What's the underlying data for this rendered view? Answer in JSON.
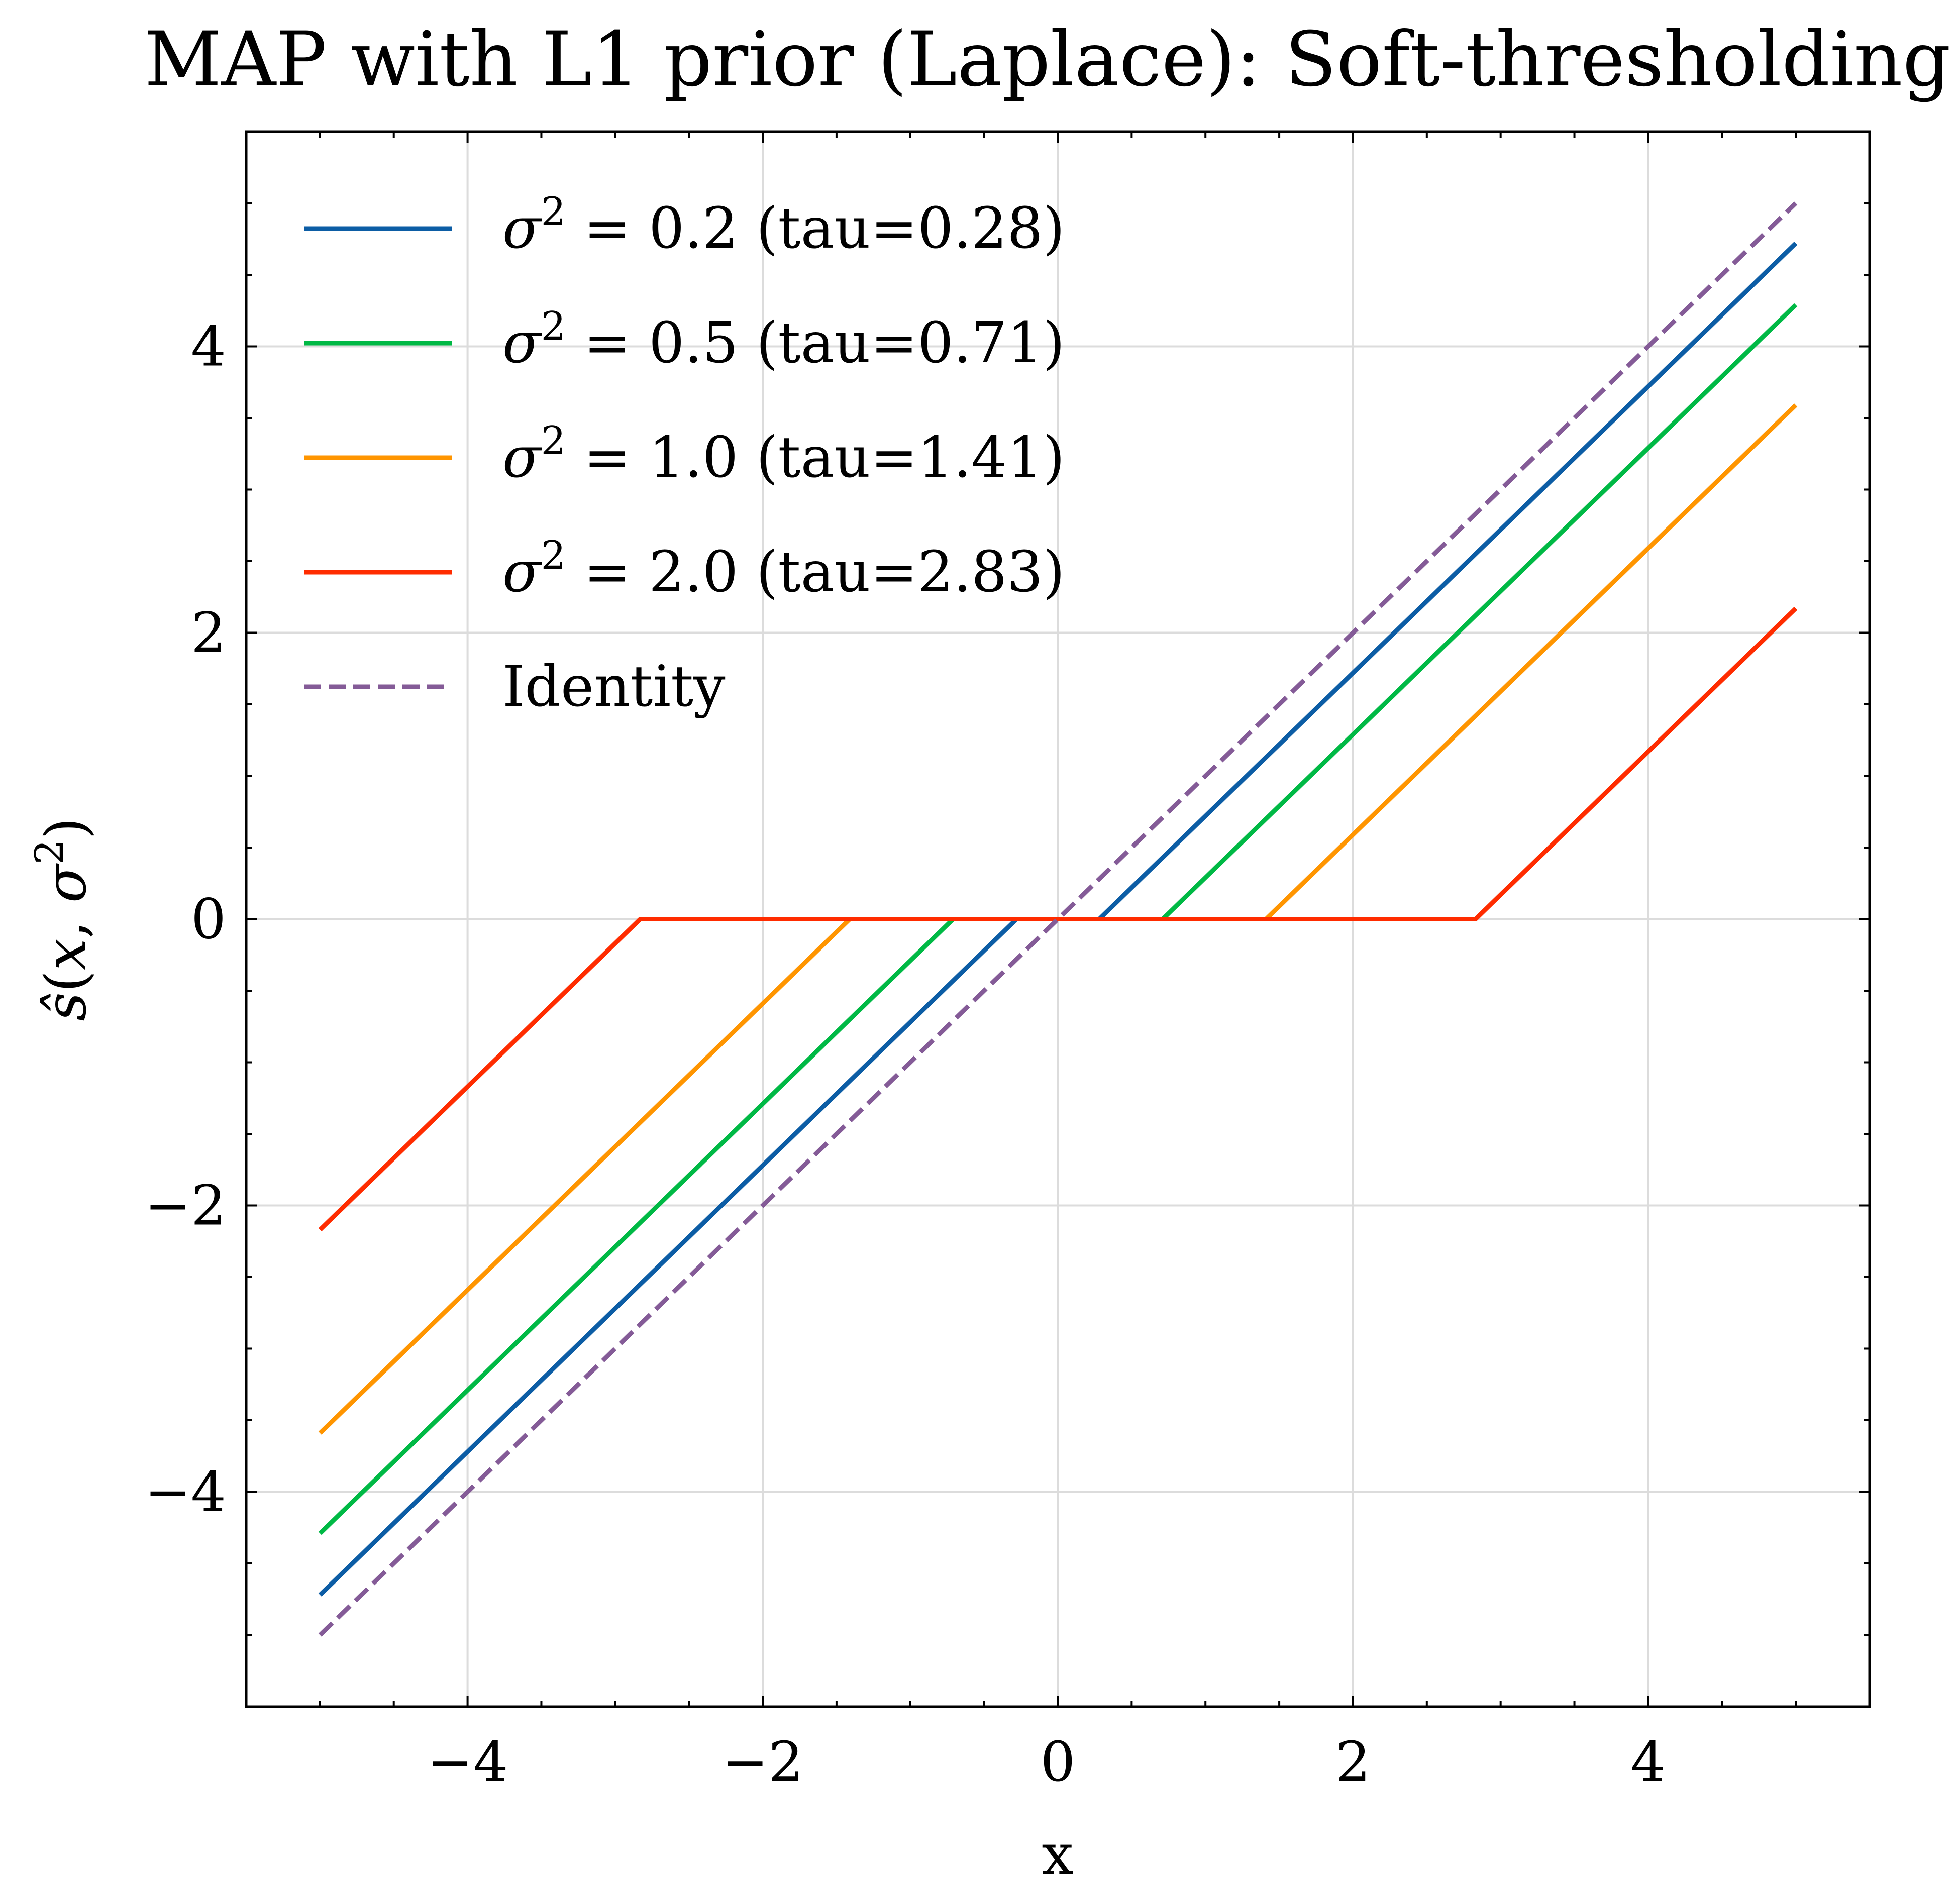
{
  "chart_data": {
    "type": "line",
    "title": "MAP with L1 prior (Laplace): Soft-thresholding",
    "xlabel": "x",
    "ylabel": {
      "lead": "ŝ",
      "var": "x",
      "sym": "σ",
      "exp": "2"
    },
    "xlim": [
      -5.5,
      5.5
    ],
    "ylim": [
      -5.5,
      5.5
    ],
    "xticks": [
      -4,
      -2,
      0,
      2,
      4
    ],
    "yticks": [
      -4,
      -2,
      0,
      2,
      4
    ],
    "xtick_labels": [
      "−4",
      "−2",
      "0",
      "2",
      "4"
    ],
    "ytick_labels": [
      "−4",
      "−2",
      "0",
      "2",
      "4"
    ],
    "x_range": [
      -5,
      5
    ],
    "grid": true,
    "legend_position": "upper-left",
    "series": [
      {
        "key": "s02",
        "sym": "σ",
        "exp": "2",
        "label": " = 0.2 (tau=0.28)",
        "tau": 0.28,
        "color": "#0C5DA5",
        "dashed": false
      },
      {
        "key": "s05",
        "sym": "σ",
        "exp": "2",
        "label": " = 0.5 (tau=0.71)",
        "tau": 0.71,
        "color": "#00B945",
        "dashed": false
      },
      {
        "key": "s10",
        "sym": "σ",
        "exp": "2",
        "label": " = 1.0 (tau=1.41)",
        "tau": 1.41,
        "color": "#FF9500",
        "dashed": false
      },
      {
        "key": "s20",
        "sym": "σ",
        "exp": "2",
        "label": " = 2.0 (tau=2.83)",
        "tau": 2.83,
        "color": "#FF2C00",
        "dashed": false
      },
      {
        "key": "identity",
        "sym": "",
        "exp": "",
        "label": "Identity",
        "tau": 0,
        "color": "#845B97",
        "dashed": true
      }
    ]
  }
}
